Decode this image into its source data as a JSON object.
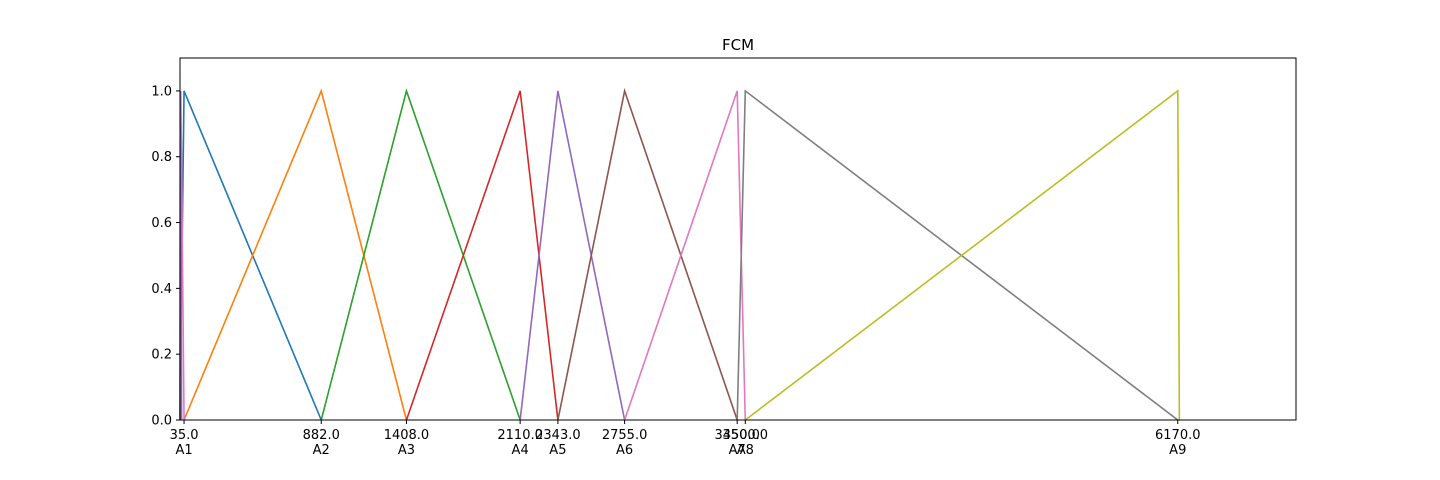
{
  "chart_data": {
    "type": "line",
    "title": "FCM",
    "xlabel": "",
    "ylabel": "",
    "ylim": [
      0,
      1.1
    ],
    "xlim": [
      10,
      6900
    ],
    "grid": false,
    "yticks": [
      "0.0",
      "0.2",
      "0.4",
      "0.6",
      "0.8",
      "1.0"
    ],
    "ytick_values": [
      0,
      0.2,
      0.4,
      0.6,
      0.8,
      1.0
    ],
    "xticks": [
      {
        "value": 35,
        "label": "35.0",
        "term": "A1"
      },
      {
        "value": 882,
        "label": "882.0",
        "term": "A2"
      },
      {
        "value": 1408,
        "label": "1408.0",
        "term": "A3"
      },
      {
        "value": 2110,
        "label": "2110.0",
        "term": "A4"
      },
      {
        "value": 2343,
        "label": "2343.0",
        "term": "A5"
      },
      {
        "value": 2755,
        "label": "2755.0",
        "term": "A6"
      },
      {
        "value": 3450,
        "label": "3450.0",
        "term": "A7"
      },
      {
        "value": 3500,
        "label": "3500.0",
        "term": "A8"
      },
      {
        "value": 6170,
        "label": "6170.0",
        "term": "A9"
      }
    ],
    "series": [
      {
        "color": "#1f77b4",
        "x": [
          10,
          35,
          882
        ],
        "y": [
          0,
          1,
          0
        ]
      },
      {
        "color": "#ff7f0e",
        "x": [
          35,
          882,
          1408
        ],
        "y": [
          0,
          1,
          0
        ]
      },
      {
        "color": "#2ca02c",
        "x": [
          882,
          1408,
          2110
        ],
        "y": [
          0,
          1,
          0
        ]
      },
      {
        "color": "#d62728",
        "x": [
          1408,
          2110,
          2343
        ],
        "y": [
          0,
          1,
          0
        ]
      },
      {
        "color": "#9467bd",
        "x": [
          2110,
          2343,
          2755
        ],
        "y": [
          0,
          1,
          0
        ]
      },
      {
        "color": "#8c564b",
        "x": [
          2343,
          2755,
          3450
        ],
        "y": [
          0,
          1,
          0
        ]
      },
      {
        "color": "#e377c2",
        "x": [
          2755,
          3450,
          3500
        ],
        "y": [
          0,
          1,
          0
        ]
      },
      {
        "color": "#7f7f7f",
        "x": [
          3450,
          3500,
          6170
        ],
        "y": [
          0,
          1,
          0
        ]
      },
      {
        "color": "#bcbd22",
        "x": [
          3500,
          6170,
          6180
        ],
        "y": [
          0,
          1,
          0
        ]
      },
      {
        "color": "#e377c2",
        "x": [
          10,
          15,
          35
        ],
        "y": [
          0,
          1,
          0
        ]
      },
      {
        "color": "#9467bd",
        "x": [
          10,
          12,
          20
        ],
        "y": [
          0,
          1,
          0
        ]
      }
    ]
  }
}
